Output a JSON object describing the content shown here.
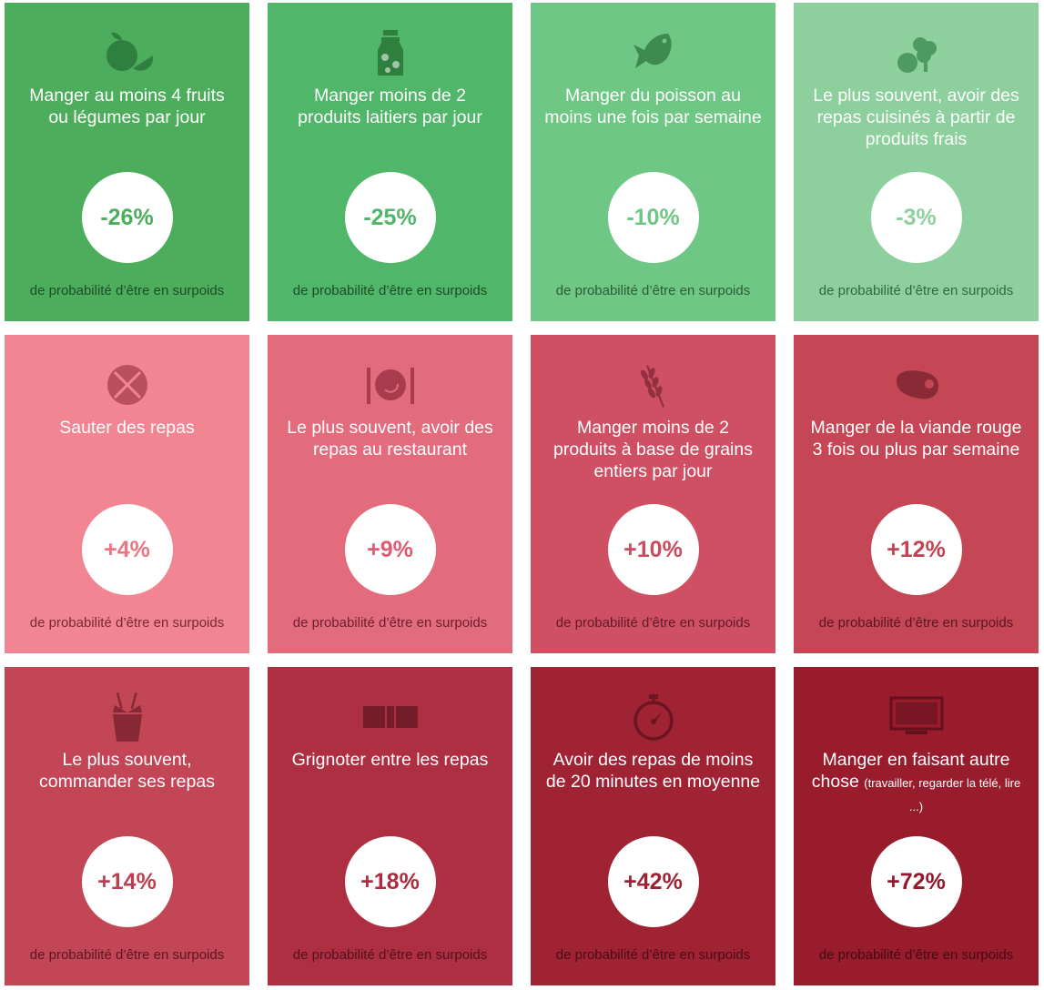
{
  "cards": [
    {
      "title": "Manger au moins 4 fruits ou légumes par jour",
      "note": "",
      "value": "-26%",
      "footer": "de probabilité d’être en surpoids",
      "icon": "orange-icon",
      "bg": "#4cae5c",
      "text": "#4cae5c",
      "foot": "#1c4d26",
      "ico": "#2f7f3e"
    },
    {
      "title": "Manger moins de 2 produits laitiers par jour",
      "note": "",
      "value": "-25%",
      "footer": "de probabilité d’être en surpoids",
      "icon": "milk-carton-icon",
      "bg": "#50b66a",
      "text": "#50b66a",
      "foot": "#1c4d26",
      "ico": "#2f7f3e"
    },
    {
      "title": "Manger du poisson au moins une fois par semaine",
      "note": "",
      "value": "-10%",
      "footer": "de probabilité d’être en surpoids",
      "icon": "fish-icon",
      "bg": "#6ec784",
      "text": "#6ec784",
      "foot": "#2a5d36",
      "ico": "#3e8a50"
    },
    {
      "title": "Le plus souvent, avoir des repas cuisinés à partir de produits frais",
      "note": "",
      "value": "-3%",
      "footer": "de probabilité d’être en surpoids",
      "icon": "vegetables-icon",
      "bg": "#8dd09e",
      "text": "#8dd09e",
      "foot": "#2f6a3f",
      "ico": "#4e9a62"
    },
    {
      "title": "Sauter des repas",
      "note": "",
      "value": "+4%",
      "footer": "de probabilité d’être en surpoids",
      "icon": "no-meal-icon",
      "bg": "#f28592",
      "text": "#ef7383",
      "foot": "#7a2833",
      "ico": "#b9505d"
    },
    {
      "title": "Le plus souvent, avoir des repas au restaurant",
      "note": "",
      "value": "+9%",
      "footer": "de probabilité d’être en surpoids",
      "icon": "plate-cutlery-icon",
      "bg": "#e26b7c",
      "text": "#e05d71",
      "foot": "#6d1f2b",
      "ico": "#a83b4c"
    },
    {
      "title": "Manger moins de 2 produits à base de grains entiers par jour",
      "note": "",
      "value": "+10%",
      "footer": "de probabilité d’être en surpoids",
      "icon": "wheat-icon",
      "bg": "#ce5062",
      "text": "#cc4b5d",
      "foot": "#621a25",
      "ico": "#93303f"
    },
    {
      "title": "Manger de la viande rouge 3 fois ou plus par semaine",
      "note": "",
      "value": "+12%",
      "footer": "de probabilité d’être en surpoids",
      "icon": "steak-icon",
      "bg": "#c54655",
      "text": "#c34353",
      "foot": "#5a1620",
      "ico": "#8a2a37"
    },
    {
      "title": "Le plus souvent, commander ses repas",
      "note": "",
      "value": "+14%",
      "footer": "de probabilité d’être en surpoids",
      "icon": "takeout-box-icon",
      "bg": "#c24656",
      "text": "#bd3f50",
      "foot": "#5a1620",
      "ico": "#862835"
    },
    {
      "title": "Grignoter entre les repas",
      "note": "",
      "value": "+18%",
      "footer": "de probabilité d’être en surpoids",
      "icon": "snack-bar-icon",
      "bg": "#ae2f41",
      "text": "#ab2d3f",
      "foot": "#4f111b",
      "ico": "#751c29"
    },
    {
      "title": "Avoir des repas de moins de 20 minutes en moyenne",
      "note": "",
      "value": "+42%",
      "footer": "de probabilité d’être en surpoids",
      "icon": "stopwatch-icon",
      "bg": "#a02334",
      "text": "#9e2234",
      "foot": "#480c16",
      "ico": "#6b1422"
    },
    {
      "title": "Manger en faisant autre chose",
      "note": "(travailler, regarder la télé, lire ...)",
      "value": "+72%",
      "footer": "de probabilité d’être en surpoids",
      "icon": "tv-icon",
      "bg": "#981c2c",
      "text": "#95192b",
      "foot": "#430a13",
      "ico": "#63101c"
    }
  ]
}
